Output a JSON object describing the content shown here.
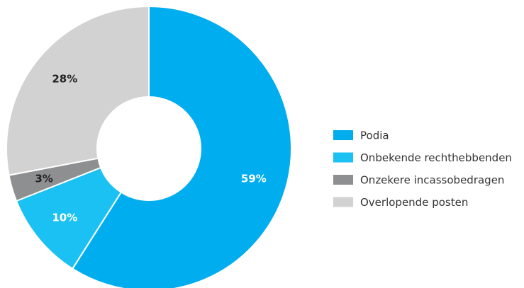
{
  "chart_data": {
    "type": "donut",
    "categories": [
      "Podia",
      "Onbekende rechthebbenden",
      "Onzekere incassobedragen",
      "Overlopende posten"
    ],
    "values": [
      59,
      10,
      3,
      28
    ],
    "value_labels": [
      "59%",
      "10%",
      "3%",
      "28%"
    ],
    "colors": [
      "#00aeef",
      "#1bc1f2",
      "#8e8f91",
      "#d2d2d3"
    ],
    "label_colors": [
      "#ffffff",
      "#ffffff",
      "#222222",
      "#222222"
    ],
    "legend": "right"
  }
}
